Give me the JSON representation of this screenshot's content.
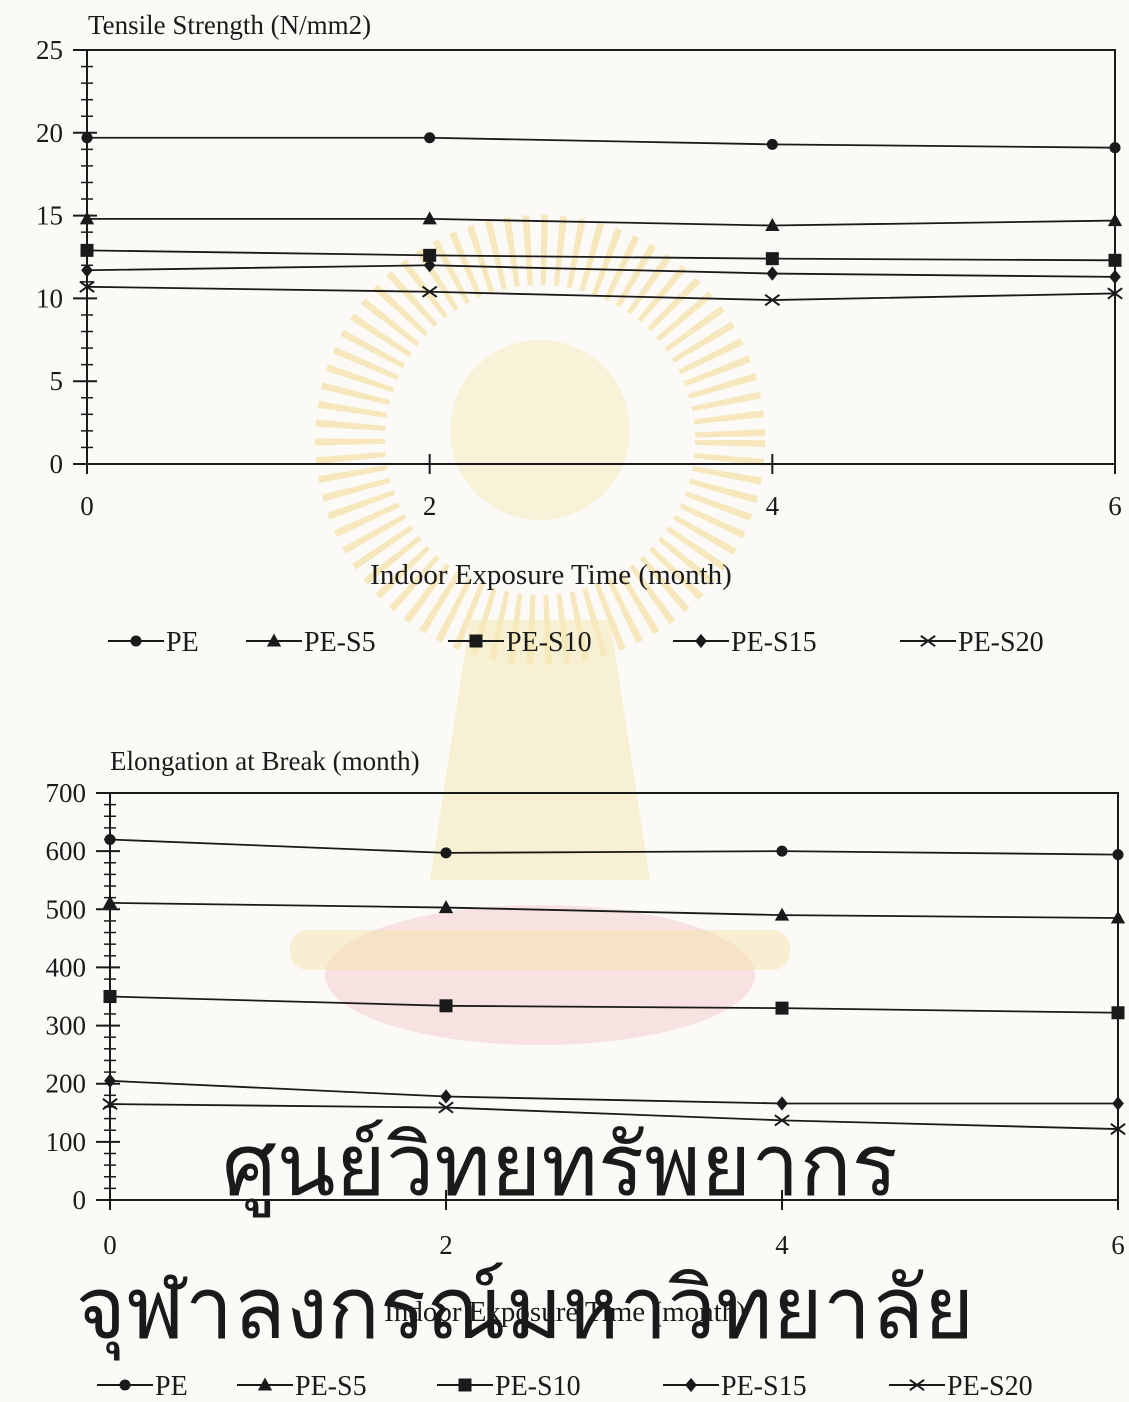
{
  "watermark": {
    "line1": "ศูนย์วิทยทรัพยากร",
    "line2": "จุฬาลงกรณ์มหาวิทยาลัย",
    "text_color": "#f3c8c8",
    "emblem_color": "#f6e7b4",
    "emblem_red": "#f3cfcf"
  },
  "chart_data": [
    {
      "type": "line",
      "title": "Tensile Strength (N/mm2)",
      "xlabel": "Indoor Exposure Time (month)",
      "ylabel": "",
      "x": [
        0,
        2,
        4,
        6
      ],
      "xlim": [
        0,
        6
      ],
      "ylim": [
        0,
        25
      ],
      "yticks": [
        0,
        5,
        10,
        15,
        20,
        25
      ],
      "xticks": [
        0,
        2,
        4,
        6
      ],
      "legend_position": "bottom",
      "grid": false,
      "series": [
        {
          "name": "PE",
          "marker": "circle",
          "values": [
            19.7,
            19.7,
            19.3,
            19.1
          ]
        },
        {
          "name": "PE-S5",
          "marker": "triangle",
          "values": [
            14.8,
            14.8,
            14.4,
            14.7
          ]
        },
        {
          "name": "PE-S10",
          "marker": "square",
          "values": [
            12.9,
            12.6,
            12.4,
            12.3
          ]
        },
        {
          "name": "PE-S15",
          "marker": "diamond",
          "values": [
            11.7,
            12.0,
            11.5,
            11.3
          ]
        },
        {
          "name": "PE-S20",
          "marker": "x",
          "values": [
            10.7,
            10.4,
            9.9,
            10.3
          ]
        }
      ]
    },
    {
      "type": "line",
      "title": "Elongation at Break (month)",
      "xlabel": "Indoor Exposure Time (month)",
      "ylabel": "",
      "x": [
        0,
        2,
        4,
        6
      ],
      "xlim": [
        0,
        6
      ],
      "ylim": [
        0,
        700
      ],
      "yticks": [
        0,
        100,
        200,
        300,
        400,
        500,
        600,
        700
      ],
      "xticks": [
        0,
        2,
        4,
        6
      ],
      "legend_position": "bottom",
      "grid": false,
      "series": [
        {
          "name": "PE",
          "marker": "circle",
          "values": [
            620,
            597,
            600,
            594
          ]
        },
        {
          "name": "PE-S5",
          "marker": "triangle",
          "values": [
            511,
            503,
            490,
            485
          ]
        },
        {
          "name": "PE-S10",
          "marker": "square",
          "values": [
            350,
            334,
            330,
            322
          ]
        },
        {
          "name": "PE-S15",
          "marker": "diamond",
          "values": [
            205,
            178,
            166,
            166
          ]
        },
        {
          "name": "PE-S20",
          "marker": "x",
          "values": [
            165,
            159,
            137,
            122
          ]
        }
      ]
    }
  ]
}
